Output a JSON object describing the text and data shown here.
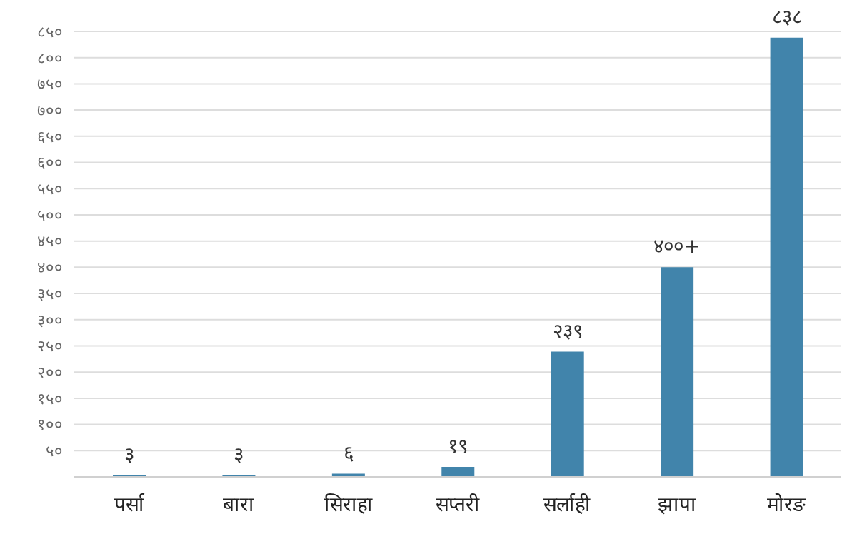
{
  "chart_data": {
    "type": "bar",
    "categories": [
      "पर्सा",
      "बारा",
      "सिराहा",
      "सप्तरी",
      "सर्लाही",
      "झापा",
      "मोरङ"
    ],
    "values": [
      3,
      3,
      6,
      19,
      239,
      400,
      838
    ],
    "value_labels": [
      "३",
      "३",
      "६",
      "१९",
      "२३९",
      "४००+",
      "८३८"
    ],
    "color": "#4184ab",
    "ylim": [
      0,
      850
    ],
    "yticks": [
      {
        "value": 50,
        "label": "५०"
      },
      {
        "value": 100,
        "label": "१००"
      },
      {
        "value": 150,
        "label": "१५०"
      },
      {
        "value": 200,
        "label": "२००"
      },
      {
        "value": 250,
        "label": "२५०"
      },
      {
        "value": 300,
        "label": "३००"
      },
      {
        "value": 350,
        "label": "३५०"
      },
      {
        "value": 400,
        "label": "४००"
      },
      {
        "value": 450,
        "label": "४५०"
      },
      {
        "value": 500,
        "label": "५००"
      },
      {
        "value": 550,
        "label": "५५०"
      },
      {
        "value": 600,
        "label": "६००"
      },
      {
        "value": 650,
        "label": "६५०"
      },
      {
        "value": 700,
        "label": "७००"
      },
      {
        "value": 750,
        "label": "७५०"
      },
      {
        "value": 800,
        "label": "८००"
      },
      {
        "value": 850,
        "label": "८५०"
      }
    ],
    "grid": "y"
  }
}
